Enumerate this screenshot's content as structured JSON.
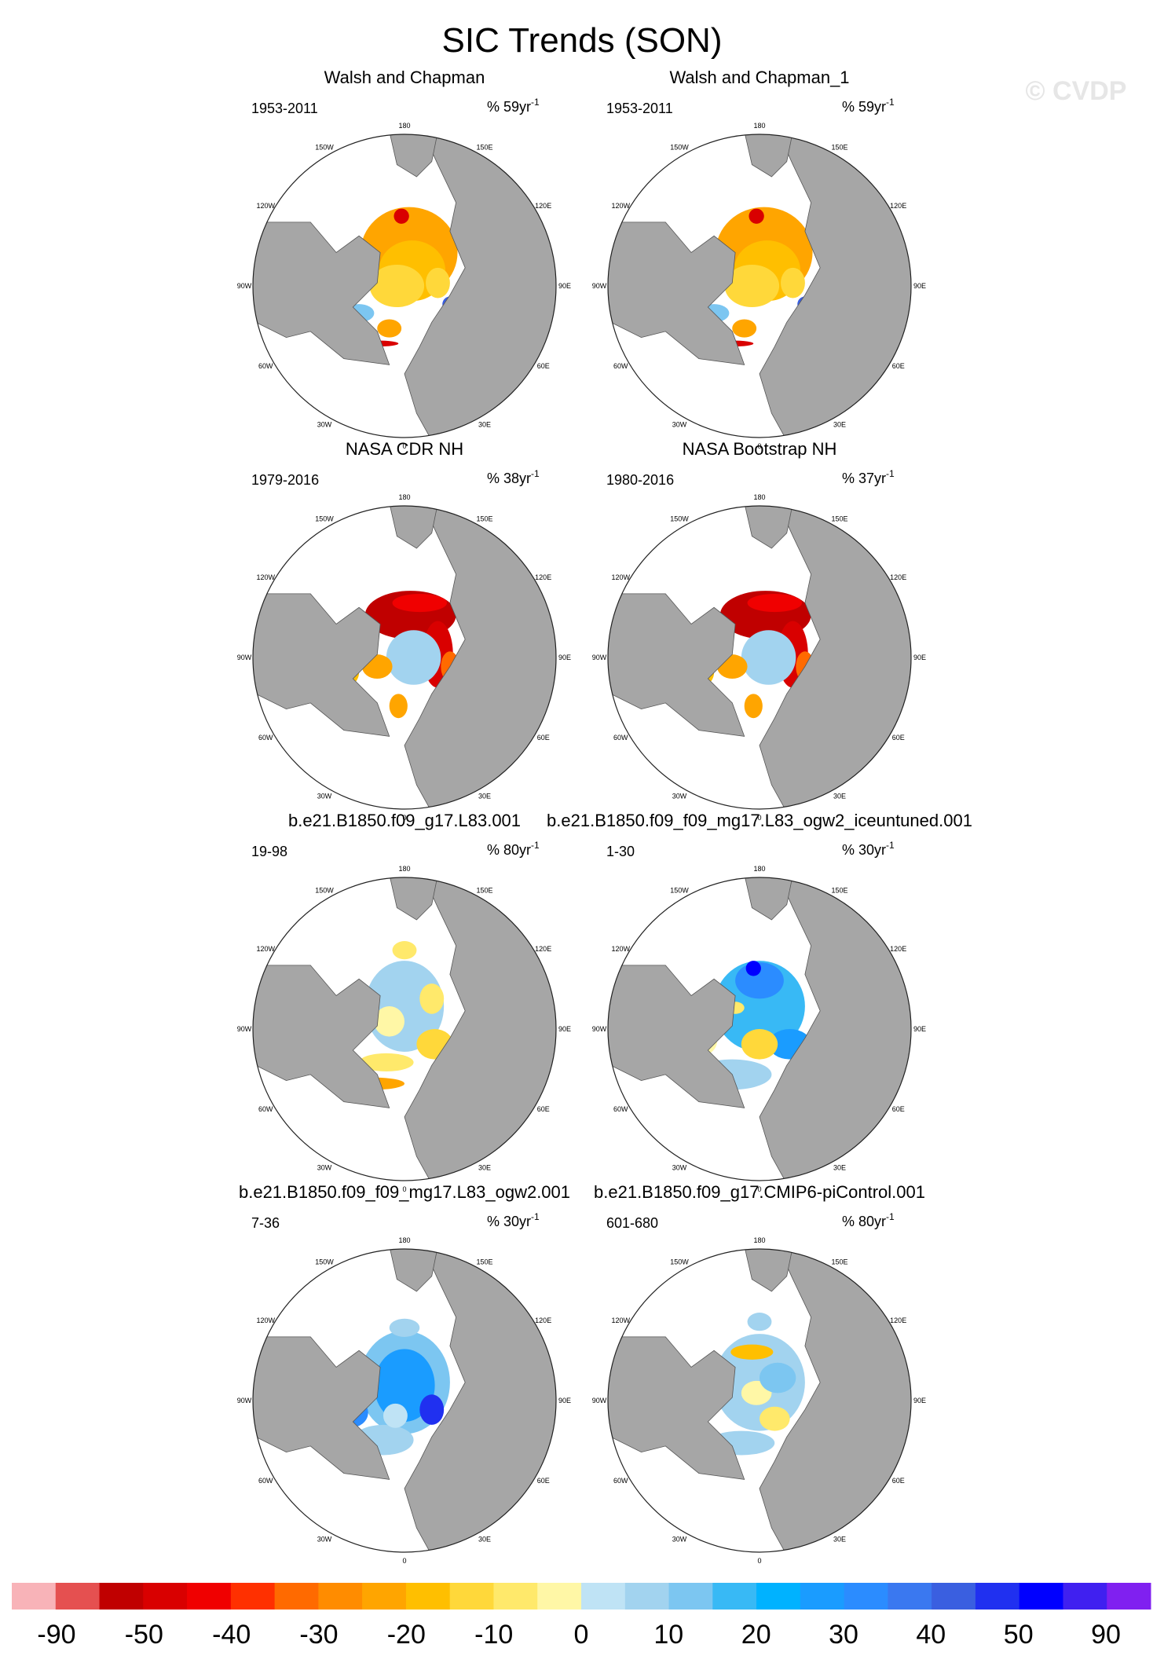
{
  "figure": {
    "title": "SIC Trends (SON)",
    "watermark": "© CVDP"
  },
  "chart_data": {
    "type": "heatmap",
    "projection": "north-polar-stereographic",
    "title": "SIC Trends (SON)",
    "lon_labels": [
      "180",
      "150E",
      "120E",
      "90E",
      "60E",
      "30E",
      "0",
      "30W",
      "60W",
      "90W",
      "120W",
      "150W"
    ],
    "panels": [
      {
        "title": "Walsh and Chapman",
        "years": "1953-2011",
        "units_prefix": "% 59yr",
        "units_exp": "-1",
        "pattern": "obs-old"
      },
      {
        "title": "Walsh and Chapman_1",
        "years": "1953-2011",
        "units_prefix": "% 59yr",
        "units_exp": "-1",
        "pattern": "obs-old"
      },
      {
        "title": "NASA CDR NH",
        "years": "1979-2016",
        "units_prefix": "% 38yr",
        "units_exp": "-1",
        "pattern": "obs-sat"
      },
      {
        "title": "NASA Bootstrap NH",
        "years": "1980-2016",
        "units_prefix": "% 37yr",
        "units_exp": "-1",
        "pattern": "obs-sat"
      },
      {
        "title": "b.e21.B1850.f09_g17.L83.001",
        "years": "19-98",
        "units_prefix": "% 80yr",
        "units_exp": "-1",
        "pattern": "model-weak"
      },
      {
        "title": "b.e21.B1850.f09_f09_mg17.L83_ogw2_iceuntuned.001",
        "years": "1-30",
        "units_prefix": "% 30yr",
        "units_exp": "-1",
        "pattern": "model-blue"
      },
      {
        "title": "b.e21.B1850.f09_f09_mg17.L83_ogw2.001",
        "years": "7-36",
        "units_prefix": "% 30yr",
        "units_exp": "-1",
        "pattern": "model-blue2"
      },
      {
        "title": "b.e21.B1850.f09_g17.CMIP6-piControl.001",
        "years": "601-680",
        "units_prefix": "% 80yr",
        "units_exp": "-1",
        "pattern": "model-mixed"
      }
    ],
    "colorbar": {
      "colors": [
        "#f8b3b8",
        "#e55050",
        "#c00000",
        "#d90000",
        "#f00000",
        "#ff3000",
        "#ff6a00",
        "#ff8c00",
        "#ffa500",
        "#ffbf00",
        "#ffd83a",
        "#ffe96b",
        "#fff7a6",
        "#bfe3f5",
        "#a2d3ef",
        "#7cc6f1",
        "#38b9f5",
        "#00b2ff",
        "#1a9cff",
        "#2b8cff",
        "#3a78f0",
        "#3a5fe0",
        "#2030f0",
        "#0000ff",
        "#4020f0",
        "#8020f0"
      ],
      "labels": [
        "-90",
        "-50",
        "-40",
        "-30",
        "-20",
        "-10",
        "0",
        "10",
        "20",
        "30",
        "40",
        "50",
        "90"
      ]
    }
  }
}
